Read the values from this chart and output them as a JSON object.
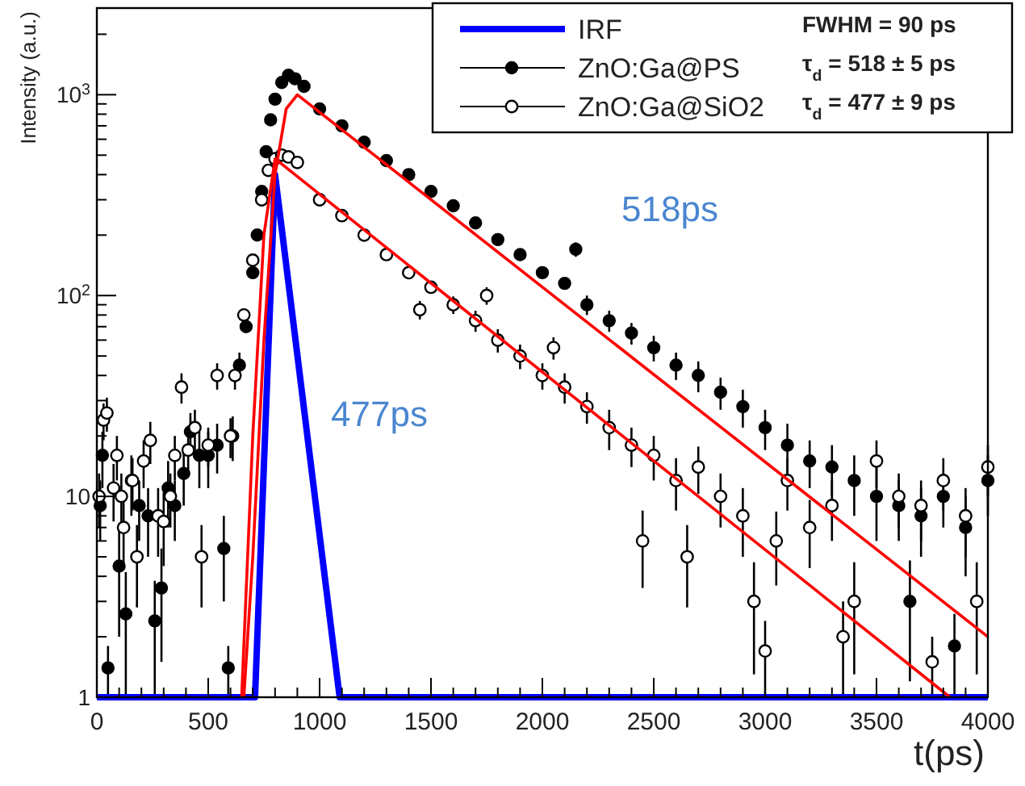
{
  "chart_data": {
    "type": "scatter",
    "xlabel": "t(ps)",
    "ylabel": "Intensity (a.u.)",
    "log": "y",
    "legend": "top right",
    "grid": false,
    "xlim": [
      0,
      4000
    ],
    "ylim": [
      1,
      2700
    ],
    "xticks": [
      0,
      {
        "value": 100,
        "label": null
      },
      {
        "value": 200,
        "label": null
      },
      {
        "value": 300,
        "label": null
      },
      {
        "value": 400,
        "label": null
      },
      500,
      {
        "value": 600,
        "label": null
      },
      {
        "value": 700,
        "label": null
      },
      {
        "value": 800,
        "label": null
      },
      {
        "value": 900,
        "label": null
      },
      1000,
      {
        "value": 1100,
        "label": null
      },
      {
        "value": 1200,
        "label": null
      },
      {
        "value": 1300,
        "label": null
      },
      {
        "value": 1400,
        "label": null
      },
      1500,
      {
        "value": 1600,
        "label": null
      },
      {
        "value": 1700,
        "label": null
      },
      {
        "value": 1800,
        "label": null
      },
      {
        "value": 1900,
        "label": null
      },
      2000,
      {
        "value": 2100,
        "label": null
      },
      {
        "value": 2200,
        "label": null
      },
      {
        "value": 2300,
        "label": null
      },
      {
        "value": 2400,
        "label": null
      },
      2500,
      {
        "value": 2600,
        "label": null
      },
      {
        "value": 2700,
        "label": null
      },
      {
        "value": 2800,
        "label": null
      },
      {
        "value": 2900,
        "label": null
      },
      3000,
      {
        "value": 3100,
        "label": null
      },
      {
        "value": 3200,
        "label": null
      },
      {
        "value": 3300,
        "label": null
      },
      {
        "value": 3400,
        "label": null
      },
      3500,
      {
        "value": 3600,
        "label": null
      },
      {
        "value": 3700,
        "label": null
      },
      {
        "value": 3800,
        "label": null
      },
      {
        "value": 3900,
        "label": null
      },
      4000
    ],
    "yticks": [
      1,
      {
        "value": 2,
        "label": null
      },
      {
        "value": 3,
        "label": null
      },
      {
        "value": 4,
        "label": null
      },
      {
        "value": 5,
        "label": null
      },
      {
        "value": 6,
        "label": null
      },
      {
        "value": 7,
        "label": null
      },
      {
        "value": 8,
        "label": null
      },
      {
        "value": 9,
        "label": null
      },
      10,
      {
        "value": 20,
        "label": null
      },
      {
        "value": 30,
        "label": null
      },
      {
        "value": 40,
        "label": null
      },
      {
        "value": 50,
        "label": null
      },
      {
        "value": 60,
        "label": null
      },
      {
        "value": 70,
        "label": null
      },
      {
        "value": 80,
        "label": null
      },
      {
        "value": 90,
        "label": null
      },
      {
        "value": 100,
        "label": "10$^{2}$"
      },
      {
        "value": 200,
        "label": null
      },
      {
        "value": 300,
        "label": null
      },
      {
        "value": 400,
        "label": null
      },
      {
        "value": 500,
        "label": null
      },
      {
        "value": 600,
        "label": null
      },
      {
        "value": 700,
        "label": null
      },
      {
        "value": 800,
        "label": null
      },
      {
        "value": 900,
        "label": null
      },
      {
        "value": 1000,
        "label": "10$^{3}$"
      },
      {
        "value": 2000,
        "label": null
      }
    ],
    "annotations": [
      "FWHM = 90 ps",
      "τ$_{d}$ = 518 ± 5 ps",
      "τ$_{d}$ = 477 ± 9 ps",
      "518ps",
      "477ps"
    ],
    "series": [
      {
        "name": "IRF",
        "type": "line",
        "color": "#0000ff",
        "marker": "none",
        "x": [
          0,
          710,
          800,
          1090,
          4000
        ],
        "values": [
          1,
          1,
          400,
          1,
          1
        ]
      },
      {
        "name": "ZnO:Ga@PS",
        "color": "#000000",
        "marker": "circle",
        "x": [
          15,
          25,
          50,
          100,
          130,
          155,
          190,
          230,
          260,
          290,
          320,
          350,
          390,
          420,
          460,
          500,
          540,
          570,
          590,
          610,
          640,
          670,
          700,
          720,
          740,
          760,
          780,
          800,
          830,
          860,
          890,
          930,
          1000,
          1100,
          1200,
          1300,
          1400,
          1500,
          1600,
          1700,
          1800,
          1900,
          2000,
          2100,
          2150,
          2200,
          2300,
          2400,
          2500,
          2600,
          2700,
          2800,
          2900,
          3000,
          3100,
          3200,
          3300,
          3400,
          3500,
          3600,
          3650,
          3700,
          3800,
          3850,
          3900,
          4000
        ],
        "values": [
          9,
          16,
          1.4,
          4.5,
          2.6,
          12,
          9,
          8,
          2.4,
          3.5,
          11,
          9,
          13,
          21,
          16,
          16,
          18,
          5.5,
          1.4,
          20,
          45,
          70,
          130,
          200,
          330,
          520,
          750,
          950,
          1150,
          1250,
          1200,
          1100,
          850,
          700,
          580,
          470,
          400,
          330,
          280,
          230,
          190,
          160,
          130,
          115,
          170,
          90,
          75,
          65,
          55,
          45,
          40,
          33,
          28,
          22,
          18,
          15,
          14,
          12,
          10,
          9,
          3,
          8,
          10,
          1.8,
          7,
          12
        ],
        "errors": [
          3,
          5,
          0.4,
          2.5,
          1.6,
          4,
          3,
          3,
          1.4,
          2,
          4,
          3,
          4,
          5,
          5,
          5,
          5,
          2.5,
          0.4,
          5,
          7,
          null,
          null,
          null,
          null,
          null,
          null,
          null,
          null,
          null,
          null,
          null,
          null,
          null,
          null,
          null,
          null,
          null,
          null,
          null,
          null,
          null,
          null,
          null,
          14,
          10,
          9,
          8,
          8,
          7,
          7,
          6,
          6,
          5,
          5,
          4,
          4,
          4,
          4,
          3,
          1.8,
          3,
          3,
          0.8,
          3,
          4
        ]
      },
      {
        "name": "ZnO:Ga@SiO2",
        "color": "#000000",
        "marker": "open_circle",
        "x": [
          10,
          30,
          45,
          75,
          90,
          110,
          120,
          160,
          180,
          210,
          240,
          275,
          300,
          330,
          350,
          380,
          410,
          440,
          470,
          500,
          540,
          600,
          620,
          660,
          700,
          740,
          770,
          800,
          830,
          860,
          900,
          1000,
          1100,
          1200,
          1300,
          1400,
          1450,
          1500,
          1600,
          1700,
          1750,
          1800,
          1900,
          2000,
          2050,
          2100,
          2200,
          2300,
          2400,
          2450,
          2500,
          2600,
          2650,
          2700,
          2800,
          2900,
          2950,
          3000,
          3050,
          3100,
          3200,
          3300,
          3350,
          3400,
          3500,
          3600,
          3700,
          3750,
          3800,
          3900,
          3950,
          4000
        ],
        "values": [
          10,
          24,
          26,
          11,
          16,
          10,
          7,
          12,
          5,
          15,
          19,
          8,
          7.5,
          10,
          16,
          35,
          17,
          22,
          5,
          18,
          40,
          20,
          40,
          80,
          150,
          300,
          420,
          480,
          500,
          490,
          460,
          300,
          250,
          200,
          160,
          130,
          85,
          110,
          90,
          75,
          100,
          60,
          50,
          40,
          55,
          35,
          28,
          22,
          18,
          6,
          16,
          12,
          5,
          14,
          10,
          8,
          3,
          1.7,
          6,
          12,
          7,
          9,
          2,
          3,
          15,
          10,
          9,
          1.5,
          12,
          8,
          3,
          14
        ],
        "errors": [
          3,
          5,
          5,
          3.5,
          4,
          3,
          2.5,
          3.5,
          2.2,
          4,
          4.5,
          3,
          3,
          3,
          4,
          6,
          4,
          5,
          2.2,
          4,
          6,
          4.5,
          6,
          null,
          null,
          null,
          null,
          null,
          null,
          null,
          null,
          null,
          null,
          null,
          null,
          null,
          9,
          null,
          9,
          9,
          10,
          8,
          7,
          6,
          7,
          6,
          5,
          5,
          4,
          2.5,
          4,
          3.5,
          2.2,
          3.7,
          3,
          3,
          1.7,
          0.7,
          2.4,
          3.5,
          2.6,
          3,
          1,
          1.7,
          4,
          3,
          3,
          0.5,
          3.5,
          3,
          1.7,
          4
        ]
      },
      {
        "type": "line",
        "color": "#ff0000",
        "marker": "none",
        "x": [
          660,
          700,
          750,
          800,
          850,
          900,
          4000
        ],
        "values": [
          1,
          5,
          60,
          400,
          850,
          1000,
          2
        ]
      },
      {
        "type": "line",
        "color": "#ff0000",
        "marker": "none",
        "x": [
          650,
          700,
          750,
          800,
          3830
        ],
        "values": [
          1,
          20,
          200,
          480,
          1
        ]
      }
    ]
  }
}
